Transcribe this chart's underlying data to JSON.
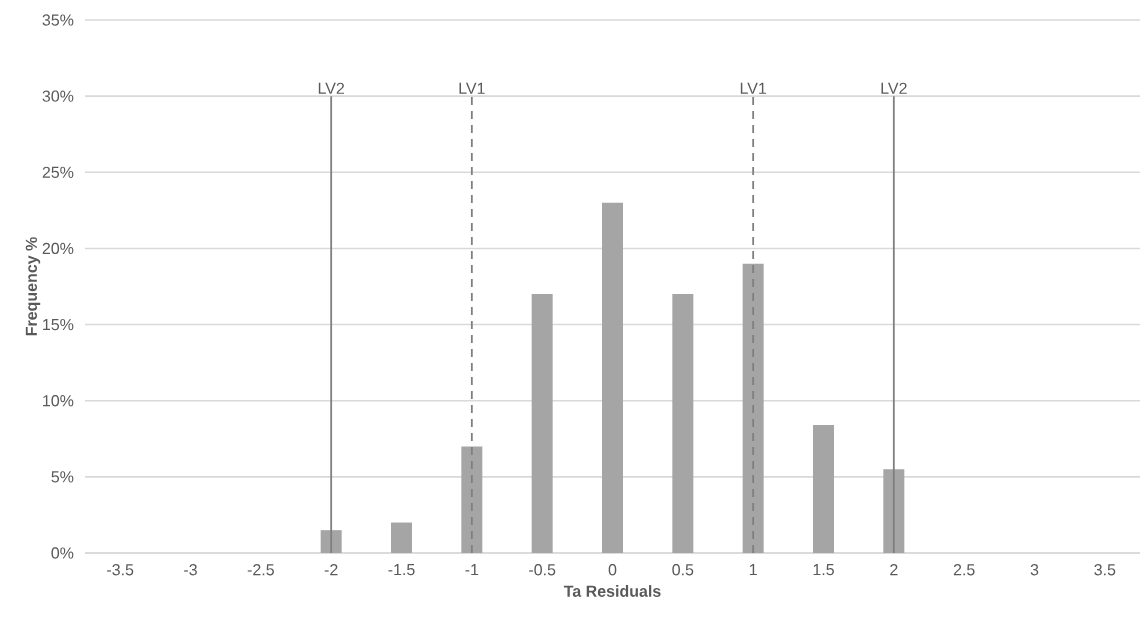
{
  "chart_data": {
    "type": "bar",
    "xlabel": "Ta Residuals",
    "ylabel": "Frequency %",
    "x": [
      -3.5,
      -3,
      -2.5,
      -2,
      -1.5,
      -1,
      -0.5,
      0,
      0.5,
      1,
      1.5,
      2,
      2.5,
      3,
      3.5
    ],
    "values": [
      0,
      0,
      0,
      1.5,
      2,
      7,
      17,
      23,
      17,
      19,
      8.4,
      5.5,
      0,
      0,
      0
    ],
    "color": "#a5a5a5",
    "xlim": [
      -3.75,
      3.75
    ],
    "xticks": [
      -3.5,
      -3,
      -2.5,
      -2,
      -1.5,
      -1,
      -0.5,
      0,
      0.5,
      1,
      1.5,
      2,
      2.5,
      3,
      3.5
    ],
    "ylim": [
      0,
      35
    ],
    "yticks": [
      {
        "value": 0,
        "label": "0%"
      },
      {
        "value": 5,
        "label": "5%"
      },
      {
        "value": 10,
        "label": "10%"
      },
      {
        "value": 15,
        "label": "15%"
      },
      {
        "value": 20,
        "label": "20%"
      },
      {
        "value": 25,
        "label": "25%"
      },
      {
        "value": 30,
        "label": "30%"
      },
      {
        "value": 35,
        "label": "35%"
      }
    ],
    "grid": "y",
    "ref_lines": [
      {
        "axis": "x",
        "value": -2,
        "label": "LV2",
        "color": "#7f7f7f",
        "line_style": "solid"
      },
      {
        "axis": "x",
        "value": -1,
        "label": "LV1",
        "color": "#7f7f7f",
        "line_style": "dashed"
      },
      {
        "axis": "x",
        "value": 1,
        "label": "LV1",
        "color": "#7f7f7f",
        "line_style": "dashed"
      },
      {
        "axis": "x",
        "value": 2,
        "label": "LV2",
        "color": "#7f7f7f",
        "line_style": "solid"
      }
    ]
  }
}
